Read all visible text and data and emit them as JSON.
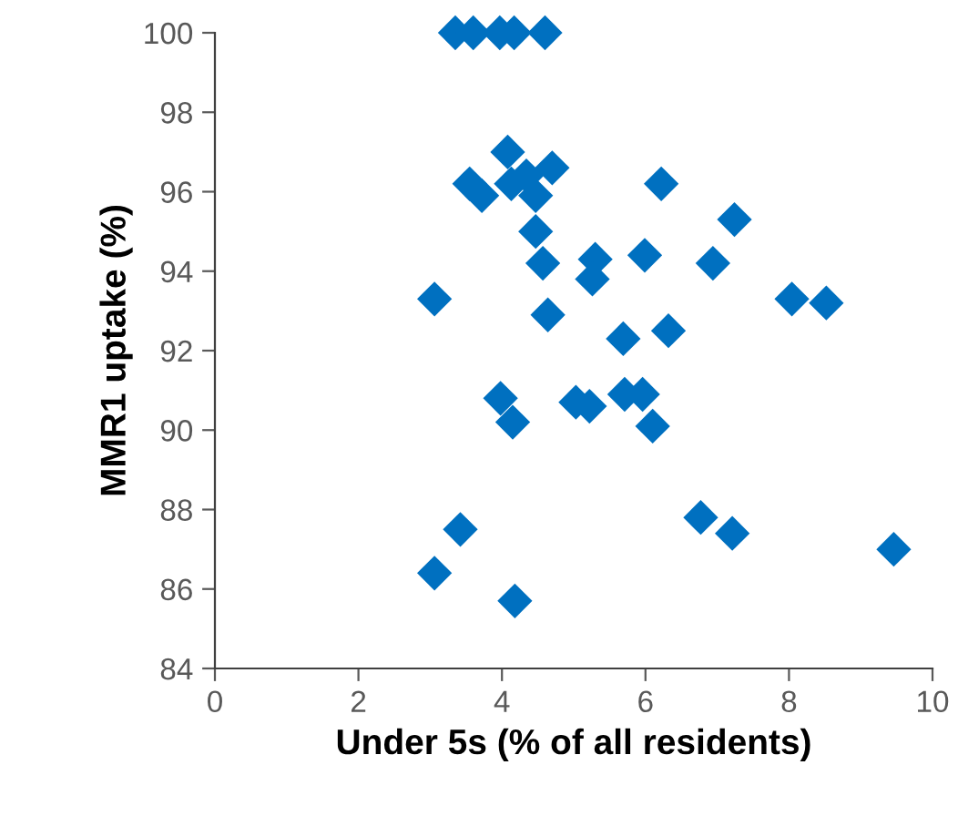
{
  "chart_data": {
    "type": "scatter",
    "xlabel": "Under 5s (% of all residents)",
    "ylabel": "MMR1 uptake (%)",
    "marker": "diamond",
    "grid": false,
    "legend": false,
    "xlim": [
      0,
      10
    ],
    "xticks": [
      0,
      2,
      4,
      6,
      8,
      10
    ],
    "ylim": [
      84,
      100
    ],
    "yticks": [
      84,
      86,
      88,
      90,
      92,
      94,
      96,
      98,
      100
    ],
    "series": [
      {
        "color": "#0070c0",
        "x": [
          3.35,
          3.6,
          3.97,
          4.17,
          4.6,
          4.08,
          4.7,
          3.55,
          3.72,
          4.13,
          4.34,
          4.47,
          4.47,
          4.57,
          3.06,
          4.64,
          6.22,
          7.24,
          5.3,
          5.26,
          5.99,
          6.94,
          8.04,
          8.52,
          5.69,
          6.32,
          5.03,
          5.22,
          5.71,
          5.96,
          6.1,
          6.77,
          7.21,
          9.46,
          3.98,
          4.15,
          3.42,
          3.06,
          4.18
        ],
        "values": [
          100,
          100,
          100,
          100,
          100,
          97.0,
          96.6,
          96.2,
          95.9,
          96.2,
          96.4,
          95.9,
          95.0,
          94.2,
          93.3,
          92.9,
          96.2,
          95.3,
          94.3,
          93.8,
          94.4,
          94.2,
          93.3,
          93.2,
          92.3,
          92.5,
          90.7,
          90.6,
          90.9,
          90.9,
          90.1,
          87.8,
          87.4,
          87.0,
          90.8,
          90.2,
          87.5,
          86.4,
          85.7
        ]
      }
    ]
  }
}
